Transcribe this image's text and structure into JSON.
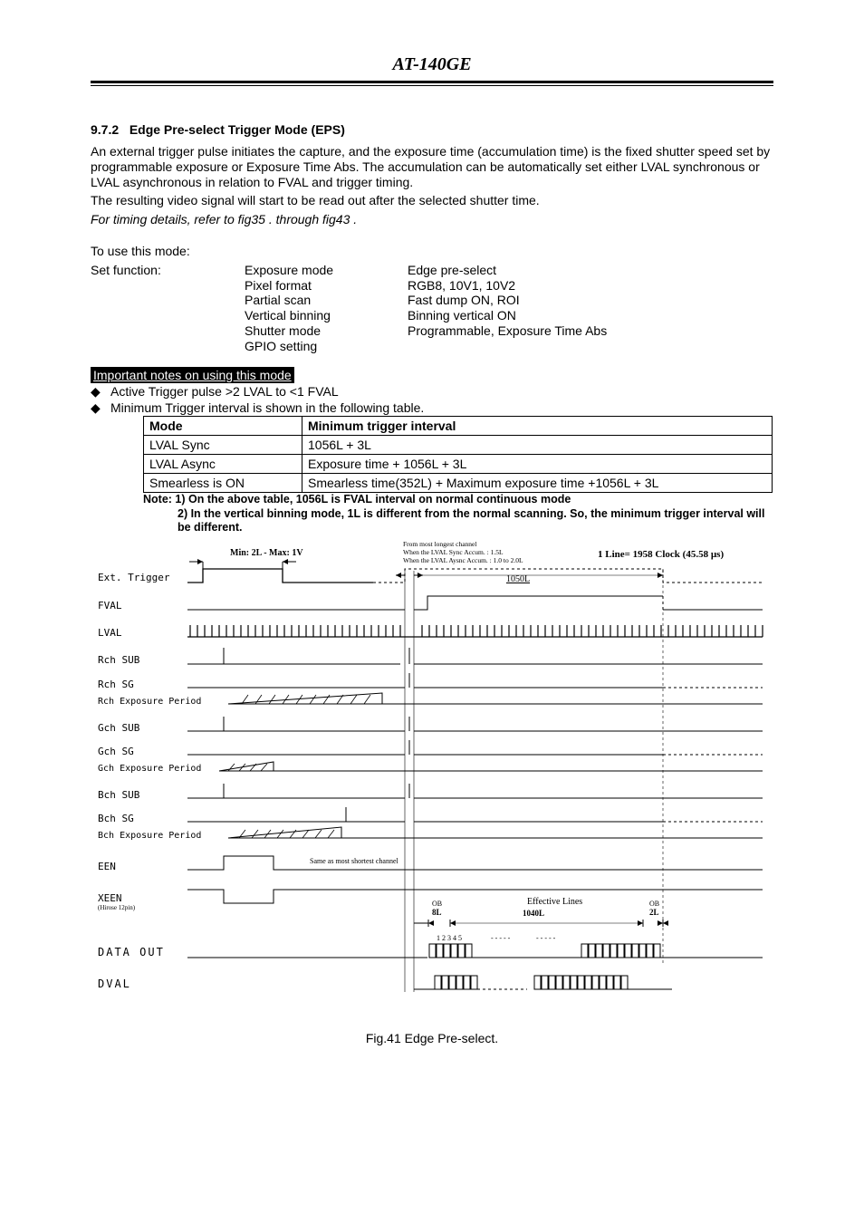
{
  "header": {
    "title": "AT-140GE"
  },
  "section": {
    "number": "9.7.2",
    "title": "Edge Pre-select Trigger Mode (EPS)",
    "para1": "An external trigger pulse initiates the capture, and the exposure time (accumulation time) is the fixed shutter speed set by programmable exposure or Exposure Time Abs. The accumulation can be automatically set either LVAL synchronous or LVAL asynchronous in relation to FVAL and trigger timing.",
    "para2": "The resulting video signal will start to be read out after the selected shutter time.",
    "para3_italic": "For timing details, refer to fig35 . through fig43 ."
  },
  "usage": {
    "intro": "To use this mode:",
    "label": "Set function:",
    "rows": [
      {
        "k": "Exposure mode",
        "v": "Edge pre-select"
      },
      {
        "k": "Pixel format",
        "v": "RGB8, 10V1, 10V2"
      },
      {
        "k": "Partial scan",
        "v": "Fast dump ON, ROI"
      },
      {
        "k": "Vertical binning",
        "v": "Binning vertical ON"
      },
      {
        "k": " Shutter mode",
        "v": "Programmable, Exposure Time Abs"
      },
      {
        "k": "GPIO setting",
        "v": ""
      }
    ]
  },
  "important": {
    "heading": "Important notes on using this mode",
    "bullets": [
      "Active Trigger pulse >2 LVAL to <1 FVAL",
      "Minimum Trigger interval is shown in the following table."
    ]
  },
  "table": {
    "headers": [
      "Mode",
      "Minimum trigger interval"
    ],
    "rows": [
      [
        "LVAL Sync",
        "1056L + 3L"
      ],
      [
        "LVAL Async",
        "Exposure time + 1056L + 3L"
      ],
      [
        "Smearless is ON",
        "Smearless time(352L) + Maximum exposure time +1056L + 3L"
      ]
    ],
    "note1": "Note: 1) On the above table, 1056L is  FVAL interval on normal continuous mode",
    "note2": "2) In the vertical binning mode, 1L is different from the normal scanning. So, the minimum trigger interval will be different."
  },
  "diagram": {
    "min_max": "Min: 2L - Max: 1V",
    "top_text1": "From most longest channel",
    "top_text2": "When the LVAL Sync Accum.  : 1.5L",
    "top_text3": "When the  LVAL Aysnc Accum. : 1.0 to 2.0L",
    "one_line": "1 Line= 1958 Clock (45.58 µs)",
    "n1050L": "1050L",
    "labels": [
      "Ext. Trigger",
      "FVAL",
      "LVAL",
      "Rch SUB",
      "Rch SG",
      "Rch Exposure Period",
      "Gch SUB",
      "Gch SG",
      "Gch Exposure Period",
      "Bch SUB",
      "Bch SG",
      "Bch Exposure Period",
      "EEN",
      "XEEN",
      "DATA OUT",
      "DVAL"
    ],
    "xeen_sub": "(Hirose 12pin)",
    "same_as": "Same as most shortest channel",
    "ob_left": "OB",
    "ob_8l": "8L",
    "eff_lines": "Effective Lines",
    "eff_1040": "1040L",
    "ob_right": "OB",
    "ob_2l": "2L",
    "data_nums": "1 2 3 4 5"
  },
  "caption": "Fig.41    Edge Pre-select."
}
